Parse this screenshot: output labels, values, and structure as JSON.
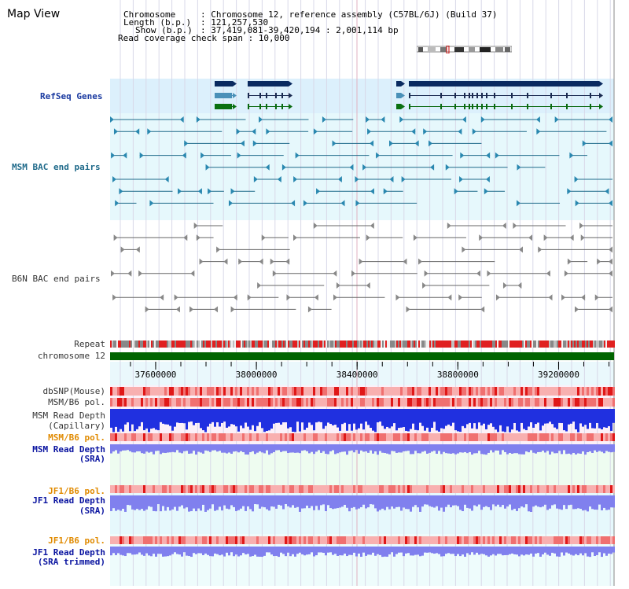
{
  "page": {
    "title": "Map View"
  },
  "header": {
    "chromosome_key": "Chromosome",
    "chromosome_val": ": Chromosome 12, reference assembly (C57BL/6J) (Build 37)",
    "length_key": "Length (b.p.)",
    "length_val": ": 121,257,530",
    "show_key": "Show (b.p.)",
    "show_val": ": 37,419,081-39,420,194 : 2,001,114 bp",
    "read_cov": "Read coverage check span : 10,000"
  },
  "tracks": {
    "refseq": "RefSeq Genes",
    "msm_bac": "MSM BAC end pairs",
    "b6n_bac": "B6N BAC end pairs",
    "repeat": "Repeat",
    "chromosome": "chromosome 12",
    "dbsnp": "dbSNP(Mouse)",
    "msm_b6_pol": "MSM/B6 pol.",
    "msm_depth_cap_1": "MSM Read Depth",
    "msm_depth_cap_2": "(Capillary)",
    "msm_b6_pol2": "MSM/B6 pol.",
    "msm_depth_sra_1": "MSM Read Depth",
    "msm_depth_sra_2": "(SRA)",
    "jf1_b6_pol": "JF1/B6 pol.",
    "jf1_depth_sra_1": "JF1 Read Depth",
    "jf1_depth_sra_2": "(SRA)",
    "jf1_b6_pol2": "JF1/B6 pol.",
    "jf1_depth_trim_1": "JF1 Read Depth",
    "jf1_depth_trim_2": "(SRA trimmed)"
  },
  "axis": {
    "ticks": [
      "37600000",
      "38000000",
      "38400000",
      "38800000",
      "39200000"
    ],
    "tick_values": [
      37600000,
      38000000,
      38400000,
      38800000,
      39200000
    ],
    "range": [
      37419081,
      39420194
    ]
  },
  "colors": {
    "refseq_bg": "#dcf0fc",
    "track_bg": "#e6f8fc",
    "msm_line": "#1f6a8a",
    "b6n_line": "#666666",
    "chrom_green": "#006400",
    "depth_blue": "#2030e0",
    "depth_light": "#8080ee",
    "pol_red": "#ee3030"
  }
}
